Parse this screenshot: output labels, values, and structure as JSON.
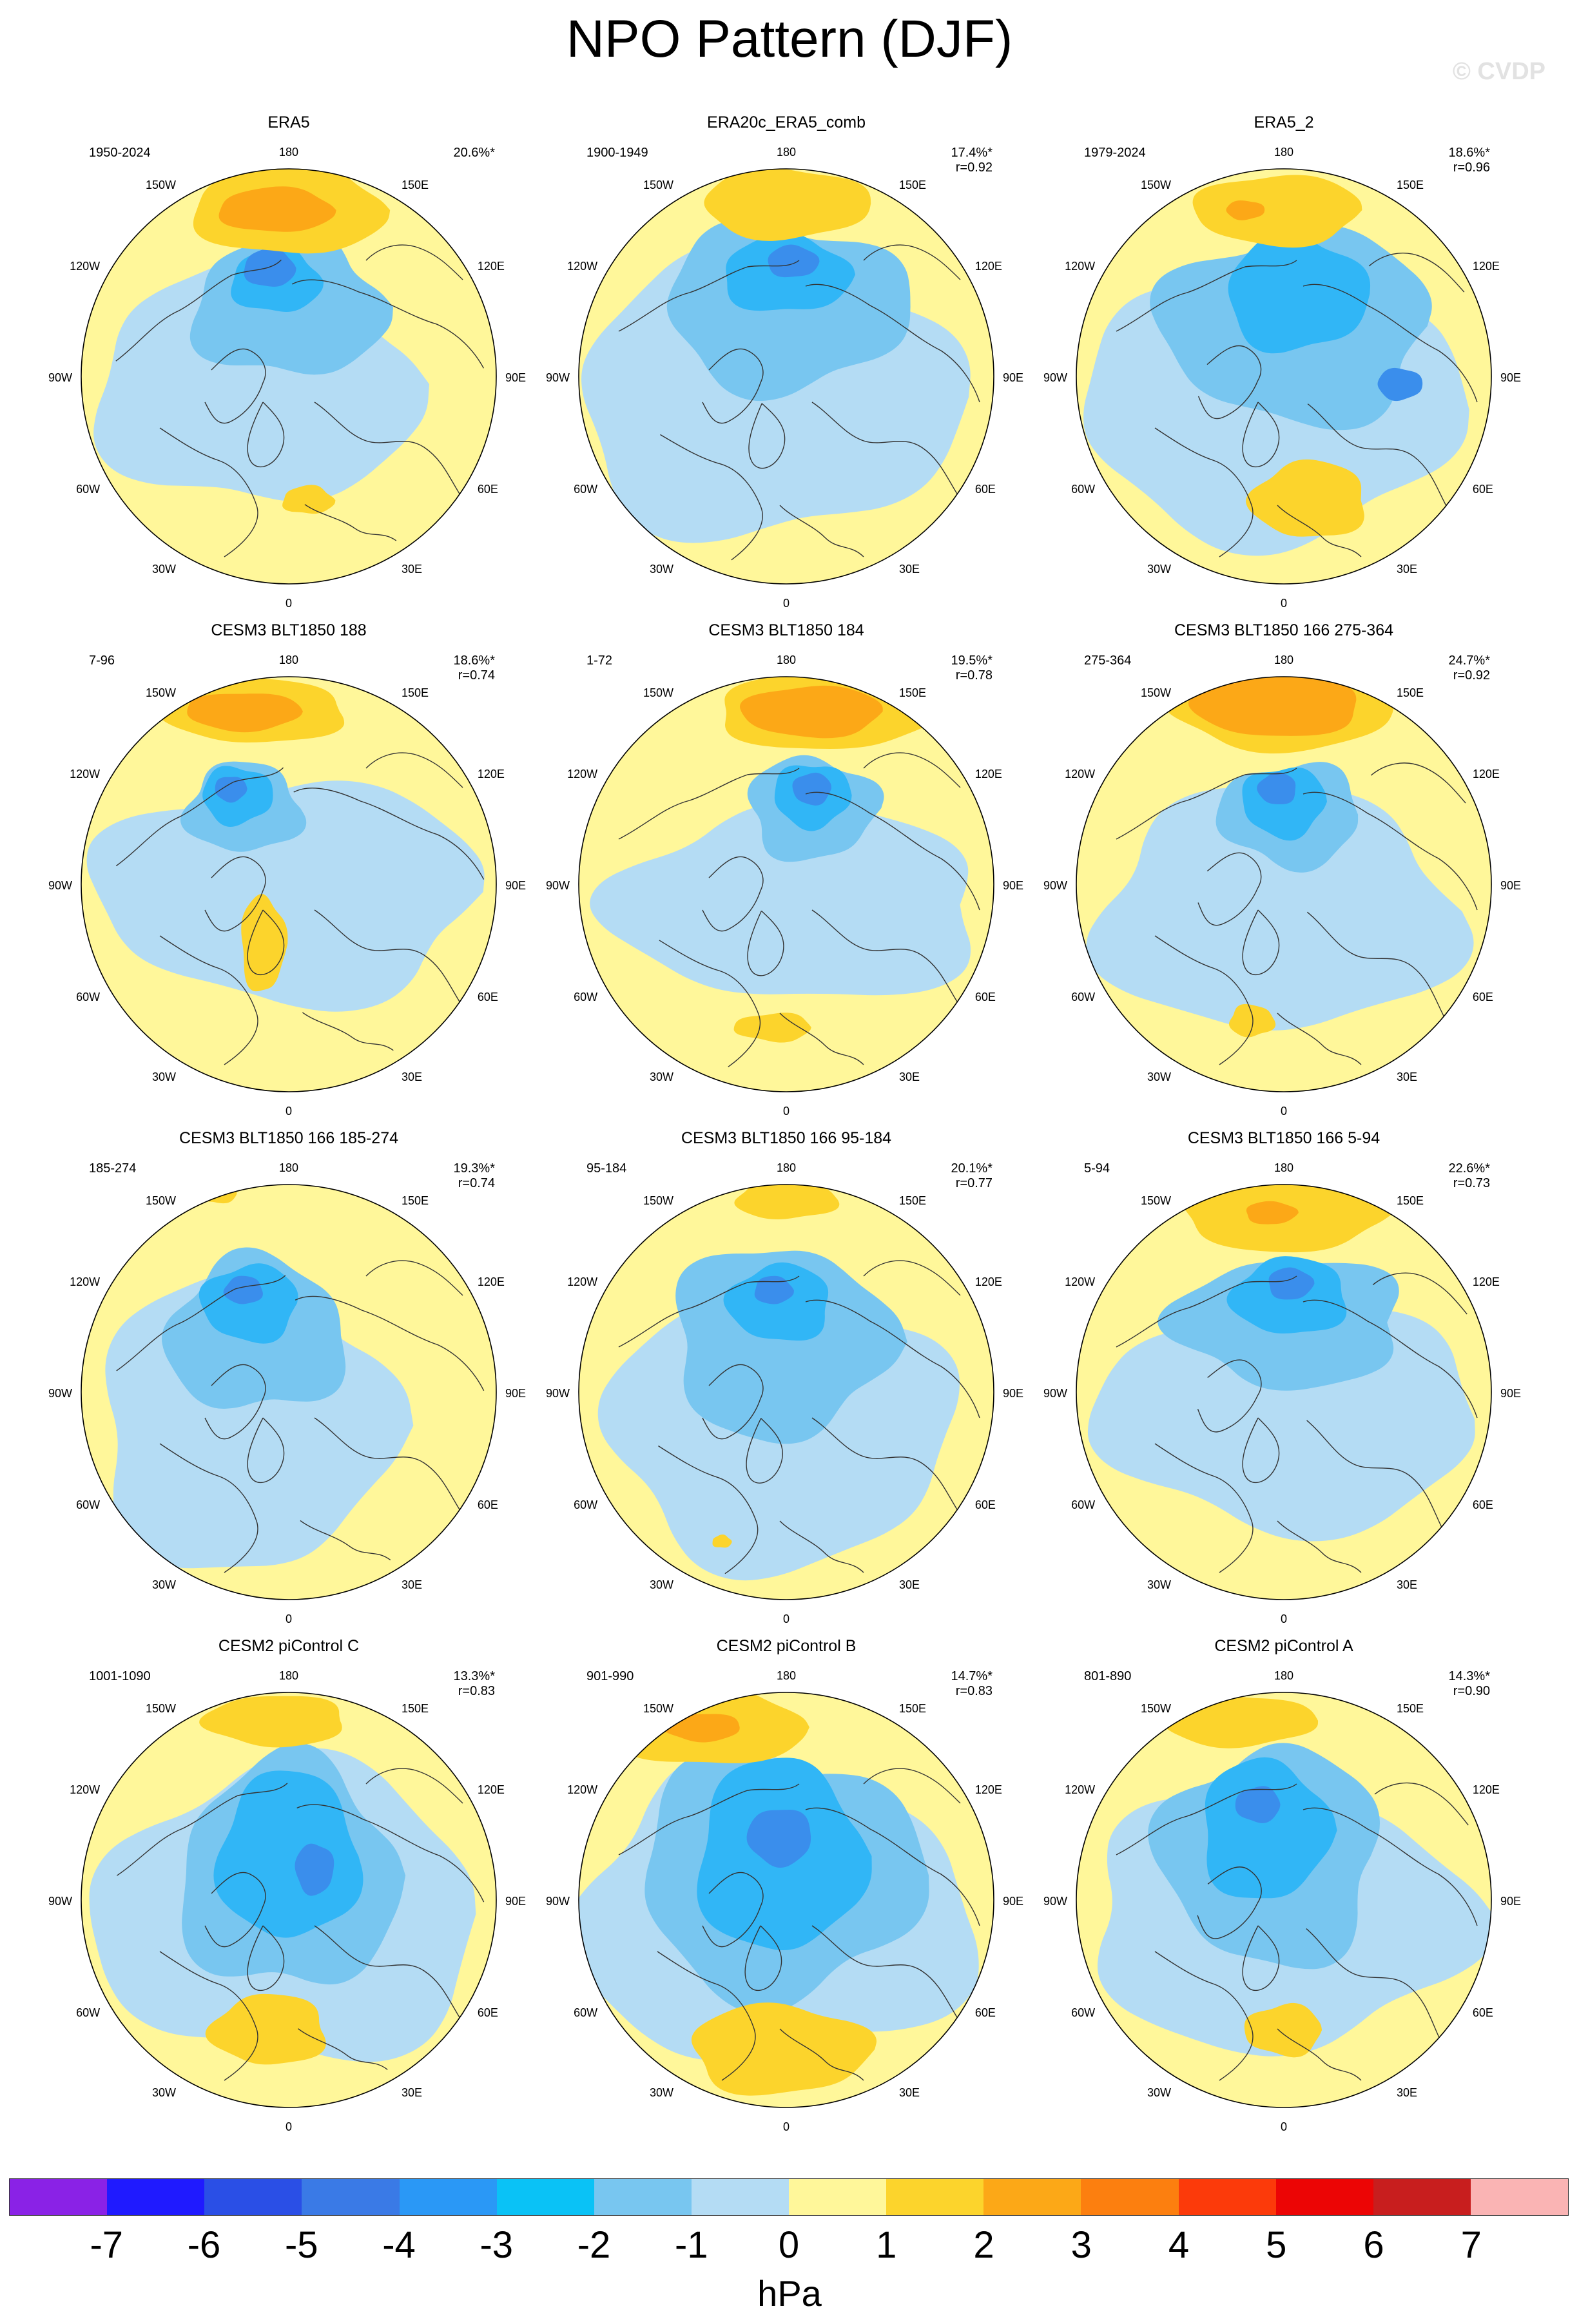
{
  "title": "NPO Pattern (DJF)",
  "watermark": "© CVDP",
  "colors": {
    "ocean_yellow": "#fff79a",
    "gold": "#fcd42c",
    "orange": "#fca817",
    "light_blue": "#b4dcf4",
    "mid_blue": "#78c6f0",
    "blue": "#31b6f6",
    "deep_blue": "#3a8eec",
    "darker_blue": "#3c63ec"
  },
  "map_labels": {
    "top": "180",
    "bottom": "0",
    "left": "90W",
    "right": "90E",
    "upper_left_1": "150W",
    "upper_left_2": "120W",
    "upper_right_1": "150E",
    "upper_right_2": "120E",
    "lower_left_1": "60W",
    "lower_left_2": "30W",
    "lower_right_1": "60E",
    "lower_right_2": "30E"
  },
  "panels": [
    {
      "title": "ERA5",
      "period": "1950-2024",
      "pct": "20.6%*",
      "r": ""
    },
    {
      "title": "ERA20c_ERA5_comb",
      "period": "1900-1949",
      "pct": "17.4%*",
      "r": "r=0.92"
    },
    {
      "title": "ERA5_2",
      "period": "1979-2024",
      "pct": "18.6%*",
      "r": "r=0.96"
    },
    {
      "title": "CESM3 BLT1850 188",
      "period": "7-96",
      "pct": "18.6%*",
      "r": "r=0.74"
    },
    {
      "title": "CESM3 BLT1850 184",
      "period": "1-72",
      "pct": "19.5%*",
      "r": "r=0.78"
    },
    {
      "title": "CESM3 BLT1850 166 275-364",
      "period": "275-364",
      "pct": "24.7%*",
      "r": "r=0.92"
    },
    {
      "title": "CESM3 BLT1850 166 185-274",
      "period": "185-274",
      "pct": "19.3%*",
      "r": "r=0.74"
    },
    {
      "title": "CESM3 BLT1850 166 95-184",
      "period": "95-184",
      "pct": "20.1%*",
      "r": "r=0.77"
    },
    {
      "title": "CESM3 BLT1850 166 5-94",
      "period": "5-94",
      "pct": "22.6%*",
      "r": "r=0.73"
    },
    {
      "title": "CESM2 piControl C",
      "period": "1001-1090",
      "pct": "13.3%*",
      "r": "r=0.83"
    },
    {
      "title": "CESM2 piControl B",
      "period": "901-990",
      "pct": "14.7%*",
      "r": "r=0.83"
    },
    {
      "title": "CESM2 piControl A",
      "period": "801-890",
      "pct": "14.3%*",
      "r": "r=0.90"
    }
  ],
  "colorbar": {
    "swatches": [
      "#8a22e6",
      "#1f1aff",
      "#2a4fe6",
      "#3a7ae6",
      "#2a98f6",
      "#0ac2f6",
      "#78c6f0",
      "#b4dcf4",
      "#fff79a",
      "#fcd42c",
      "#fca817",
      "#fc7f0f",
      "#fc3a0a",
      "#ec0505",
      "#c81e1e",
      "#fab4b4"
    ],
    "labels": [
      "-7",
      "-6",
      "-5",
      "-4",
      "-3",
      "-2",
      "-1",
      "0",
      "1",
      "2",
      "3",
      "4",
      "5",
      "6",
      "7"
    ],
    "units": "hPa"
  }
}
